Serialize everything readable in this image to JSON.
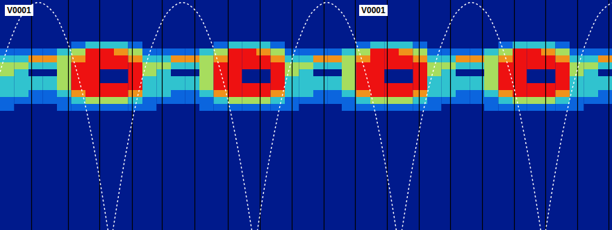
{
  "chart_data": {
    "type": "heatmap",
    "panel_labels": [
      "V0001",
      "V0001"
    ],
    "xlim": [
      0,
      881
    ],
    "ylim": [
      0,
      332
    ],
    "tick_labels": false,
    "x_bins": [
      0,
      20.5,
      41,
      61.5,
      82,
      102.5,
      123,
      143.5,
      164,
      184.5,
      205,
      225.5,
      246,
      266.5,
      287,
      307.5,
      328,
      348.5,
      369,
      389.5,
      410,
      430.5,
      451,
      471.5,
      492,
      512.5,
      533,
      553.5,
      574,
      594.5,
      615,
      635.5,
      656,
      676.5,
      697,
      717.5,
      738,
      758.5,
      779,
      799.5,
      820,
      840.5,
      861,
      881.5
    ],
    "y_bins": [
      60,
      70,
      80,
      90,
      100,
      110,
      120,
      130,
      140,
      150,
      160,
      170
    ],
    "clim": [
      0,
      5
    ],
    "cells": [
      [
        0,
        0,
        0,
        0,
        0,
        1,
        2,
        2,
        2,
        1,
        0,
        0,
        0,
        0,
        0,
        1,
        2,
        2,
        2,
        1,
        0,
        0,
        0,
        0,
        0,
        1,
        2,
        2,
        2,
        1,
        0,
        0,
        0,
        0,
        0,
        1,
        2,
        2,
        2,
        1,
        0,
        0,
        0
      ],
      [
        1,
        1,
        1,
        1,
        2,
        3,
        5,
        5,
        4,
        3,
        1,
        1,
        1,
        1,
        2,
        3,
        5,
        5,
        4,
        3,
        1,
        1,
        1,
        1,
        2,
        3,
        5,
        5,
        4,
        3,
        1,
        1,
        1,
        1,
        2,
        3,
        5,
        5,
        4,
        3,
        1,
        1,
        1
      ],
      [
        2,
        2,
        4,
        4,
        3,
        4,
        5,
        5,
        5,
        4,
        2,
        2,
        4,
        4,
        3,
        4,
        5,
        5,
        5,
        4,
        2,
        2,
        4,
        4,
        3,
        4,
        5,
        5,
        5,
        4,
        2,
        2,
        4,
        4,
        3,
        4,
        5,
        5,
        5,
        4,
        2,
        2,
        4
      ],
      [
        3,
        3,
        2,
        2,
        3,
        5,
        5,
        5,
        5,
        5,
        3,
        3,
        2,
        2,
        3,
        5,
        5,
        5,
        5,
        5,
        3,
        3,
        2,
        2,
        3,
        5,
        5,
        5,
        5,
        5,
        3,
        3,
        2,
        2,
        3,
        5,
        5,
        5,
        5,
        5,
        3,
        3,
        2
      ],
      [
        3,
        2,
        0,
        0,
        3,
        5,
        5,
        0,
        0,
        5,
        3,
        2,
        0,
        0,
        3,
        5,
        5,
        0,
        0,
        5,
        3,
        2,
        0,
        0,
        3,
        5,
        5,
        0,
        0,
        5,
        3,
        2,
        0,
        0,
        3,
        5,
        5,
        0,
        0,
        5,
        3,
        2,
        0
      ],
      [
        2,
        2,
        2,
        2,
        3,
        5,
        5,
        0,
        0,
        5,
        2,
        2,
        2,
        2,
        3,
        5,
        5,
        0,
        0,
        5,
        2,
        2,
        2,
        2,
        3,
        5,
        5,
        0,
        0,
        5,
        2,
        2,
        2,
        2,
        3,
        5,
        5,
        0,
        0,
        5,
        2,
        2,
        2
      ],
      [
        2,
        2,
        2,
        2,
        3,
        5,
        5,
        5,
        5,
        5,
        2,
        2,
        2,
        2,
        3,
        5,
        5,
        5,
        5,
        5,
        2,
        2,
        2,
        2,
        3,
        5,
        5,
        5,
        5,
        5,
        2,
        2,
        2,
        2,
        3,
        5,
        5,
        5,
        5,
        5,
        2,
        2,
        2
      ],
      [
        2,
        2,
        1,
        1,
        2,
        4,
        5,
        5,
        5,
        4,
        2,
        2,
        1,
        1,
        2,
        4,
        5,
        5,
        5,
        4,
        2,
        2,
        1,
        1,
        2,
        4,
        5,
        5,
        5,
        4,
        2,
        2,
        1,
        1,
        2,
        4,
        5,
        5,
        5,
        4,
        2,
        2,
        1
      ],
      [
        1,
        1,
        1,
        1,
        1,
        2,
        3,
        3,
        3,
        2,
        1,
        1,
        1,
        1,
        1,
        2,
        3,
        3,
        3,
        2,
        1,
        1,
        1,
        1,
        1,
        2,
        3,
        3,
        3,
        2,
        1,
        1,
        1,
        1,
        1,
        2,
        3,
        3,
        3,
        2,
        1,
        1,
        1
      ],
      [
        1,
        0,
        0,
        0,
        1,
        1,
        1,
        1,
        1,
        1,
        1,
        0,
        0,
        0,
        1,
        1,
        1,
        1,
        1,
        1,
        1,
        0,
        0,
        0,
        1,
        1,
        1,
        1,
        1,
        1,
        1,
        0,
        0,
        0,
        1,
        1,
        1,
        1,
        1,
        1,
        1,
        0,
        0
      ],
      [
        0,
        0,
        0,
        0,
        0,
        0,
        0,
        0,
        0,
        0,
        0,
        0,
        0,
        0,
        0,
        0,
        0,
        0,
        0,
        0,
        0,
        0,
        0,
        0,
        0,
        0,
        0,
        0,
        0,
        0,
        0,
        0,
        0,
        0,
        0,
        0,
        0,
        0,
        0,
        0,
        0,
        0,
        0
      ]
    ],
    "vlines": [
      45,
      98,
      143,
      190,
      233,
      280,
      328,
      374,
      420,
      466,
      511,
      557,
      603,
      648,
      694,
      740,
      785,
      831,
      876
    ],
    "line_style": "dotted",
    "curves": [
      {
        "x": [
          -45,
          -25,
          -5,
          15,
          35,
          55,
          75,
          95,
          115,
          135,
          155
        ],
        "y": [
          332,
          214,
          121,
          56,
          16,
          3,
          16,
          56,
          121,
          214,
          332
        ]
      },
      {
        "x": [
          162,
          182,
          202,
          222,
          242,
          262,
          282,
          302,
          322,
          342,
          362
        ],
        "y": [
          332,
          214,
          121,
          56,
          16,
          3,
          16,
          56,
          121,
          214,
          332
        ]
      },
      {
        "x": [
          370,
          390,
          410,
          430,
          450,
          470,
          490,
          510,
          530,
          550,
          570
        ],
        "y": [
          332,
          214,
          121,
          56,
          16,
          3,
          16,
          56,
          121,
          214,
          332
        ]
      },
      {
        "x": [
          578,
          598,
          618,
          638,
          658,
          678,
          698,
          718,
          738,
          758,
          778
        ],
        "y": [
          332,
          214,
          121,
          56,
          16,
          3,
          16,
          56,
          121,
          214,
          332
        ]
      },
      {
        "x": [
          785,
          805,
          825,
          845,
          865,
          885,
          905,
          925,
          945,
          965,
          985
        ],
        "y": [
          332,
          214,
          121,
          56,
          16,
          3,
          16,
          56,
          121,
          214,
          332
        ]
      }
    ]
  }
}
